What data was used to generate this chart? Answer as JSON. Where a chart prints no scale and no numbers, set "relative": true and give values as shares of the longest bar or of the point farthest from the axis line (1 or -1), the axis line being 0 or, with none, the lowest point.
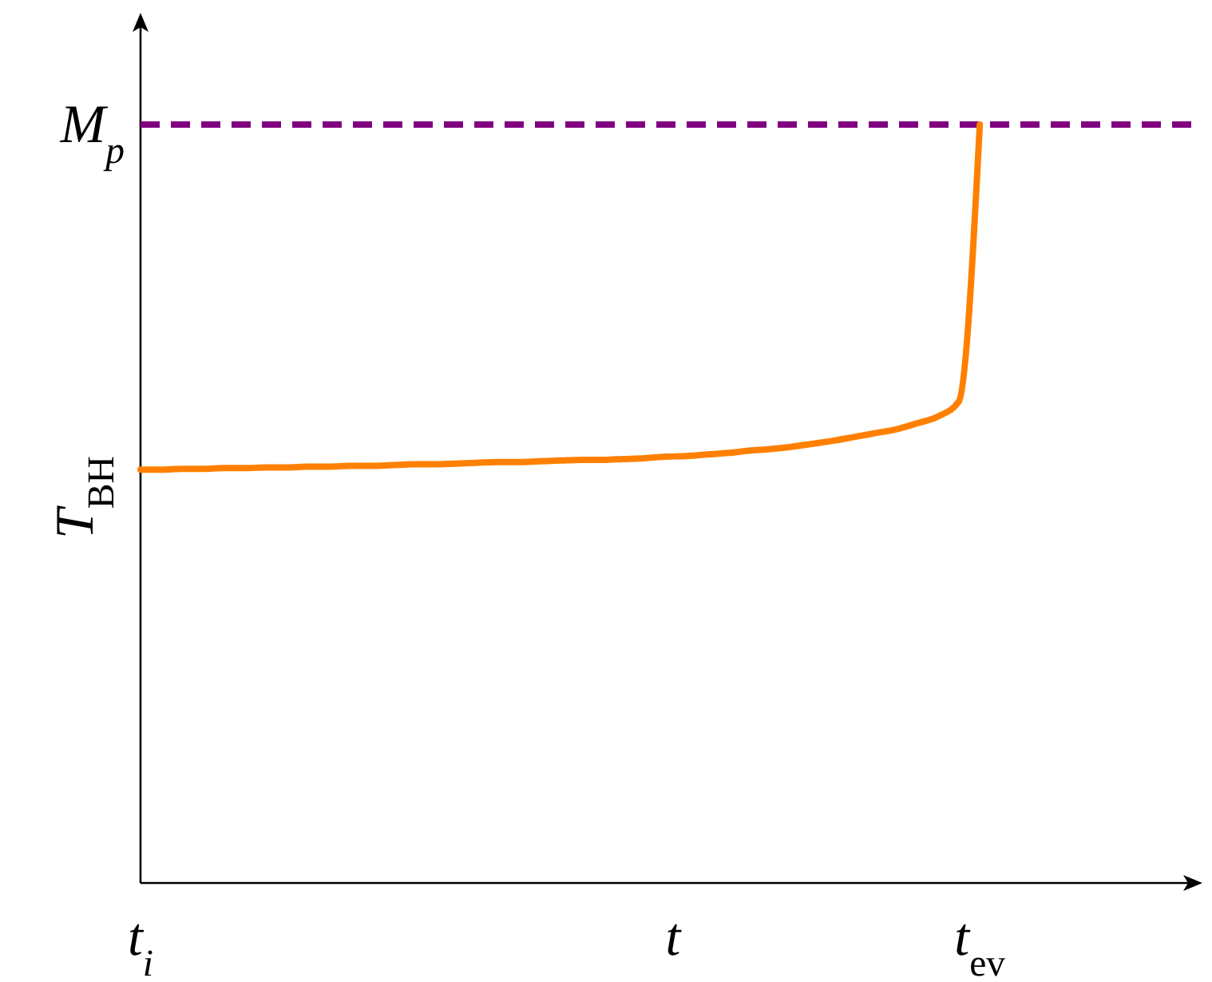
{
  "chart_data": {
    "type": "line",
    "relative": true,
    "xlabel": "t",
    "ylabel": "T$_{BH}$",
    "categories": [
      "t$_{i}$",
      null,
      null,
      null,
      null,
      null,
      null,
      null,
      null,
      null,
      null,
      null,
      null,
      null,
      null,
      null,
      null,
      null,
      null,
      null,
      null,
      null,
      null,
      null,
      null,
      null,
      null,
      null,
      null,
      null,
      null,
      null,
      null,
      null,
      null,
      null,
      null,
      null,
      null,
      null,
      "t$_{ev}$",
      null,
      null,
      null,
      null,
      null,
      null,
      null,
      null,
      null,
      null
    ],
    "series": [
      {
        "color": "#ff8000",
        "values": [
          0.545,
          0.545,
          0.546,
          0.546,
          0.547,
          0.547,
          0.548,
          0.548,
          0.549,
          0.549,
          0.55,
          0.55,
          0.551,
          0.552,
          0.552,
          0.553,
          0.554,
          0.555,
          0.555,
          0.556,
          0.557,
          0.558,
          0.558,
          0.559,
          0.56,
          0.562,
          0.563,
          0.565,
          0.567,
          0.57,
          0.572,
          0.575,
          0.579,
          0.583,
          0.588,
          0.593,
          0.598,
          0.606,
          0.615,
          0.635,
          1,
          null,
          null,
          null,
          null,
          null,
          null,
          null,
          null,
          null,
          null
        ]
      }
    ],
    "ref_lines": [
      {
        "axis": "y",
        "value": 1,
        "label": "M$_{p}$",
        "color": "#800080",
        "line_style": "dashed"
      }
    ],
    "marker": "none",
    "line_style": "solid"
  }
}
